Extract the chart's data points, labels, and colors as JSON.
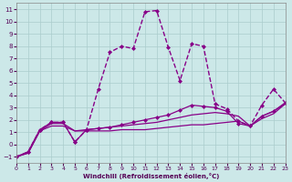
{
  "title": "Windchill (Refroidissement éolien,°C)",
  "background_color": "#cce8e8",
  "grid_color": "#aacccc",
  "line_color": "#880088",
  "xlim": [
    0,
    23
  ],
  "ylim": [
    -1.5,
    11.5
  ],
  "xticks": [
    0,
    1,
    2,
    3,
    4,
    5,
    6,
    7,
    8,
    9,
    10,
    11,
    12,
    13,
    14,
    15,
    16,
    17,
    18,
    19,
    20,
    21,
    22,
    23
  ],
  "yticks": [
    -1,
    0,
    1,
    2,
    3,
    4,
    5,
    6,
    7,
    8,
    9,
    10,
    11
  ],
  "series": [
    {
      "name": "s1_flat",
      "x": [
        0,
        1,
        2,
        3,
        4,
        5,
        6,
        7,
        8,
        9,
        10,
        11,
        12,
        13,
        14,
        15,
        16,
        17,
        18,
        19,
        20,
        21,
        22,
        23
      ],
      "y": [
        -1.0,
        -0.7,
        1.1,
        1.5,
        1.5,
        1.1,
        1.1,
        1.1,
        1.1,
        1.2,
        1.2,
        1.2,
        1.3,
        1.4,
        1.5,
        1.6,
        1.6,
        1.7,
        1.8,
        1.9,
        1.5,
        2.1,
        2.5,
        3.3
      ],
      "marker": null,
      "lw": 0.9,
      "ls": "-"
    },
    {
      "name": "s2_rising",
      "x": [
        0,
        1,
        2,
        3,
        4,
        5,
        6,
        7,
        8,
        9,
        10,
        11,
        12,
        13,
        14,
        15,
        16,
        17,
        18,
        19,
        20,
        21,
        22,
        23
      ],
      "y": [
        -1.0,
        -0.7,
        1.1,
        1.7,
        1.7,
        1.1,
        1.2,
        1.3,
        1.4,
        1.5,
        1.6,
        1.7,
        1.8,
        2.0,
        2.2,
        2.4,
        2.5,
        2.6,
        2.5,
        2.3,
        1.5,
        2.3,
        2.7,
        3.3
      ],
      "marker": null,
      "lw": 0.9,
      "ls": "-"
    },
    {
      "name": "s3_high_rising",
      "x": [
        0,
        1,
        2,
        3,
        4,
        5,
        6,
        7,
        8,
        9,
        10,
        11,
        12,
        13,
        14,
        15,
        16,
        17,
        18,
        19,
        20,
        21,
        22,
        23
      ],
      "y": [
        -1.0,
        -0.6,
        1.2,
        1.8,
        1.8,
        0.2,
        1.2,
        4.5,
        7.5,
        8.0,
        7.8,
        10.8,
        10.9,
        7.9,
        5.2,
        8.2,
        8.0,
        3.3,
        2.9,
        1.9,
        1.5,
        3.2,
        4.5,
        3.4
      ],
      "marker": "D",
      "markersize": 2.0,
      "lw": 1.0,
      "ls": "--"
    },
    {
      "name": "s4_medium",
      "x": [
        0,
        1,
        2,
        3,
        4,
        5,
        6,
        7,
        8,
        9,
        10,
        11,
        12,
        13,
        14,
        15,
        16,
        17,
        18,
        19,
        20,
        21,
        22,
        23
      ],
      "y": [
        -1.0,
        -0.6,
        1.2,
        1.8,
        1.8,
        0.2,
        1.2,
        1.3,
        1.4,
        1.6,
        1.8,
        2.0,
        2.2,
        2.4,
        2.8,
        3.2,
        3.1,
        3.0,
        2.7,
        1.7,
        1.5,
        2.3,
        2.7,
        3.4
      ],
      "marker": "D",
      "markersize": 2.0,
      "lw": 0.9,
      "ls": "-"
    }
  ]
}
